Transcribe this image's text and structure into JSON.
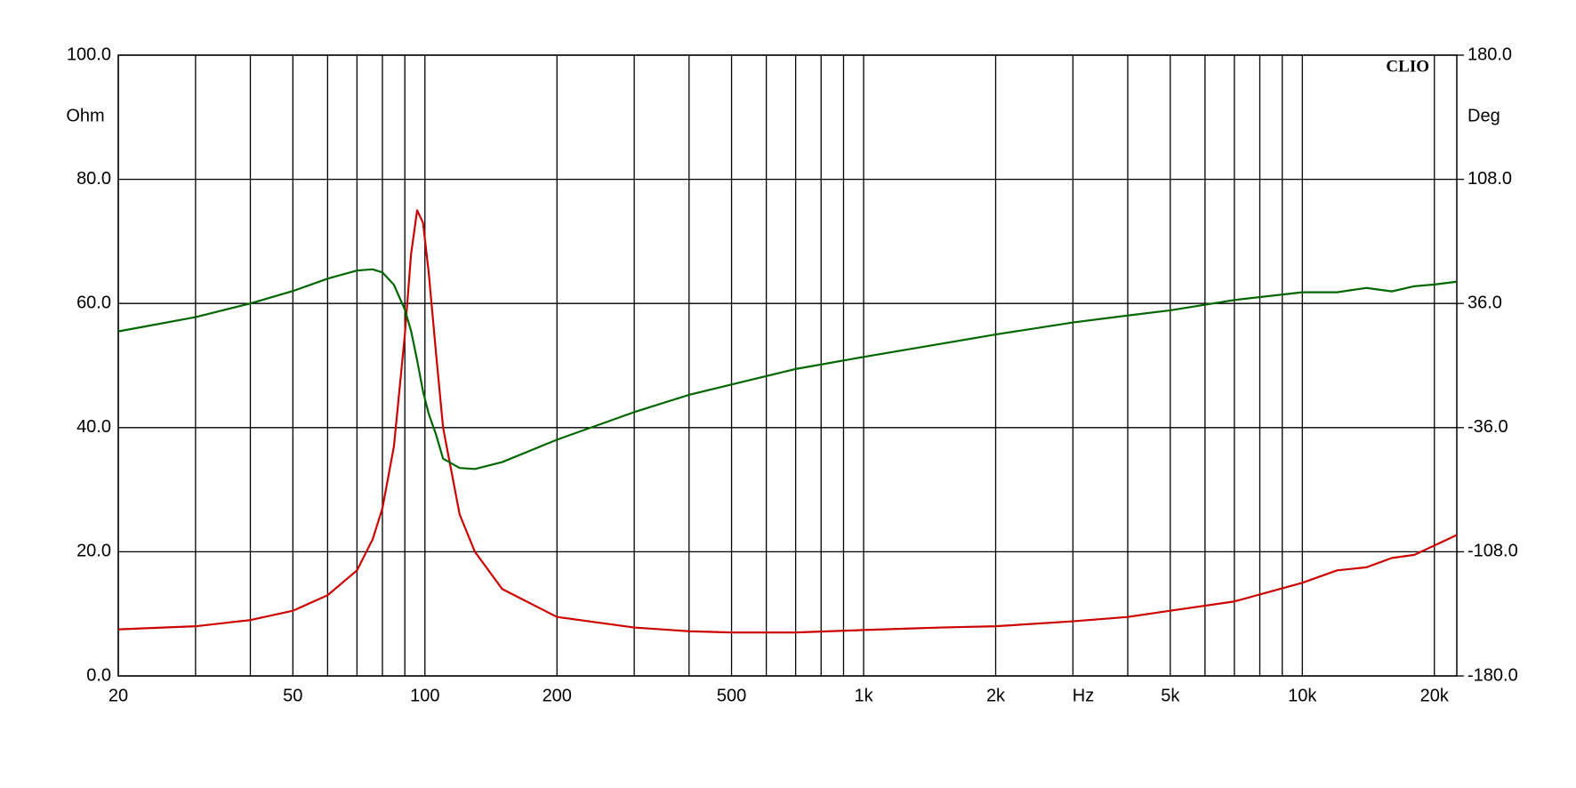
{
  "chart_data": {
    "type": "line",
    "brand": "CLIO",
    "y_label": "Ohm",
    "y2_label": "Deg",
    "x_label": "Hz",
    "xscale": "log",
    "grid": true,
    "xlim": [
      20,
      22500
    ],
    "xticks": [
      {
        "value": 20,
        "label": "20"
      },
      {
        "value": 50,
        "label": "50"
      },
      {
        "value": 100,
        "label": "100"
      },
      {
        "value": 200,
        "label": "200"
      },
      {
        "value": 500,
        "label": "500"
      },
      {
        "value": 1000,
        "label": "1k"
      },
      {
        "value": 2000,
        "label": "2k"
      },
      {
        "value": 5000,
        "label": "5k"
      },
      {
        "value": 10000,
        "label": "10k"
      },
      {
        "value": 20000,
        "label": "20k"
      }
    ],
    "xminor": [
      30,
      40,
      60,
      70,
      80,
      90,
      300,
      400,
      600,
      700,
      800,
      900,
      3000,
      4000,
      6000,
      7000,
      8000,
      9000
    ],
    "ylim": [
      0,
      100
    ],
    "yticks": [
      {
        "value": 0,
        "label": "0.0"
      },
      {
        "value": 20,
        "label": "20.0"
      },
      {
        "value": 40,
        "label": "40.0"
      },
      {
        "value": 60,
        "label": "60.0"
      },
      {
        "value": 80,
        "label": "80.0"
      },
      {
        "value": 100,
        "label": "100.0"
      }
    ],
    "y2lim": [
      -180,
      180
    ],
    "y2ticks": [
      {
        "value": -180,
        "label": "-180.0"
      },
      {
        "value": -108,
        "label": "-108.0"
      },
      {
        "value": -36,
        "label": "-36.0"
      },
      {
        "value": 36,
        "label": "36.0"
      },
      {
        "value": 108,
        "label": "108.0"
      },
      {
        "value": 180,
        "label": "180.0"
      }
    ],
    "x": [
      20,
      30,
      40,
      50,
      60,
      70,
      76,
      80,
      85,
      90,
      93,
      96,
      99,
      102,
      106,
      110,
      120,
      130,
      150,
      200,
      300,
      400,
      500,
      700,
      1000,
      1500,
      2000,
      3000,
      4000,
      5000,
      7000,
      10000,
      12000,
      14000,
      16000,
      18000,
      20000,
      22500
    ],
    "series": [
      {
        "color": "#cc0000",
        "values": [
          7.5,
          8,
          9,
          10.5,
          13,
          17,
          22,
          27,
          37,
          55,
          68,
          75,
          73,
          65,
          52,
          40,
          26,
          20,
          14,
          9.5,
          7.8,
          7.2,
          7,
          7,
          7.4,
          7.8,
          8,
          8.8,
          9.5,
          10.5,
          12,
          15,
          17,
          17.5,
          19,
          19.5,
          21,
          22.7
        ]
      },
      {
        "color": "#006600",
        "axis": "y2",
        "values": [
          19.8,
          28.1,
          36,
          43.2,
          50.4,
          55.1,
          55.8,
          54,
          46.8,
          32.4,
          20,
          3,
          -15,
          -28,
          -40,
          -54,
          -59.4,
          -60,
          -56,
          -43,
          -27,
          -17,
          -11,
          -2,
          5,
          12.6,
          18,
          25,
          29,
          32,
          38,
          42.5,
          42.5,
          45,
          43,
          46,
          47,
          48.6
        ]
      }
    ]
  }
}
